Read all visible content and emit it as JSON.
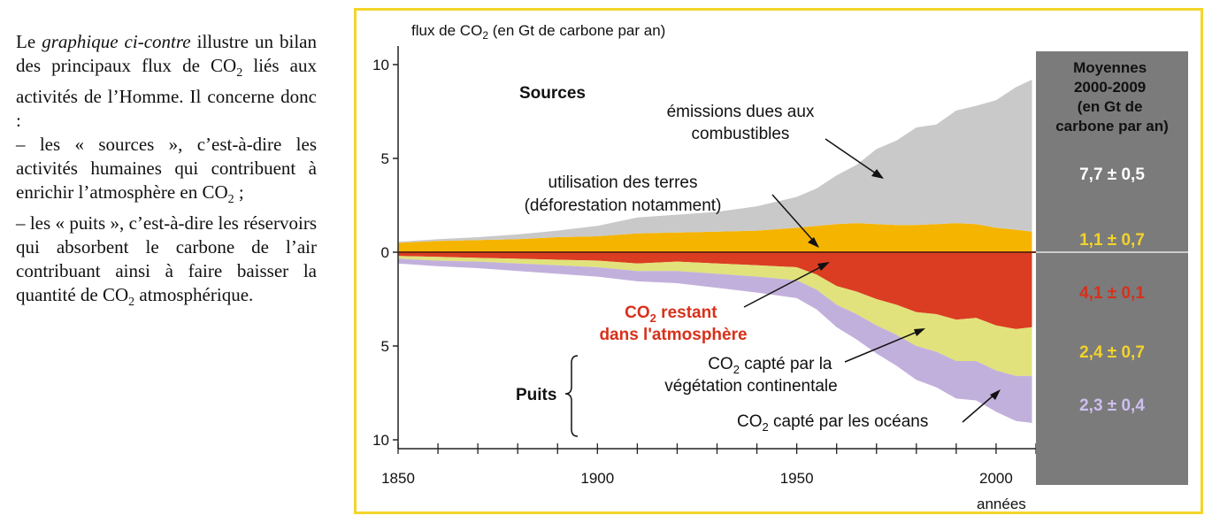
{
  "intro": {
    "p1_before": "Le ",
    "p1_italic": "graphique ci-contre",
    "p1_after": " illustre un bilan des principaux flux de CO",
    "p1_sub": "2",
    "p1_end": " liés aux activités de l’Homme. Il concerne donc :",
    "p2_start": "– les « sources », c’est-à-dire les activités humaines qui contribuent à enrichir l’atmosphère en CO",
    "p2_sub": "2",
    "p2_end": " ;",
    "p3_start": "– les « puits », c’est-à-dire les réservoirs qui absorbent le carbone de l’air contribuant ainsi à faire baisser la quantité de CO",
    "p3_sub": "2",
    "p3_end": " atmosphérique."
  },
  "colors": {
    "fossil": "#c9c9c9",
    "land_use": "#f5b400",
    "atmosphere": "#db3d22",
    "vegetation": "#e1e27b",
    "ocean": "#c2b0dc",
    "frame": "#f3d52a",
    "panel": "#7b7b7b",
    "label_red": "#d8301a",
    "label_yellow": "#f2d32a",
    "label_purple": "#cdbff0"
  },
  "chart_data": {
    "type": "area",
    "ylabel_pre": "flux de CO",
    "ylabel_sub": "2",
    "ylabel_post": " (en Gt de carbone par an)",
    "xlabel": "années",
    "xlim": [
      1850,
      2010
    ],
    "ylim_sources": [
      0,
      10
    ],
    "ylim_sinks": [
      0,
      10
    ],
    "x_ticks": [
      "1850",
      "1900",
      "1950",
      "2000"
    ],
    "y_ticks_sources": [
      "10",
      "5",
      "0"
    ],
    "y_ticks_sinks": [
      "5",
      "10"
    ],
    "x": [
      1850,
      1860,
      1870,
      1880,
      1890,
      1900,
      1910,
      1920,
      1930,
      1940,
      1950,
      1955,
      1960,
      1965,
      1970,
      1975,
      1980,
      1985,
      1990,
      1995,
      2000,
      2005,
      2009
    ],
    "sources": [
      {
        "key": "land_use",
        "values": [
          0.5,
          0.6,
          0.65,
          0.7,
          0.8,
          0.85,
          1.0,
          1.05,
          1.1,
          1.15,
          1.3,
          1.4,
          1.5,
          1.55,
          1.5,
          1.45,
          1.45,
          1.5,
          1.55,
          1.5,
          1.3,
          1.2,
          1.1
        ]
      },
      {
        "key": "fossil",
        "values": [
          0.05,
          0.1,
          0.15,
          0.25,
          0.35,
          0.55,
          0.85,
          0.95,
          1.05,
          1.3,
          1.65,
          2.0,
          2.6,
          3.1,
          4.0,
          4.5,
          5.2,
          5.3,
          6.0,
          6.3,
          6.8,
          7.6,
          8.1
        ]
      }
    ],
    "sinks": [
      {
        "key": "atmosphere",
        "values": [
          0.2,
          0.25,
          0.3,
          0.35,
          0.4,
          0.45,
          0.6,
          0.5,
          0.6,
          0.7,
          0.8,
          1.2,
          1.8,
          2.1,
          2.5,
          2.8,
          3.2,
          3.3,
          3.6,
          3.5,
          3.9,
          4.1,
          4.0
        ]
      },
      {
        "key": "vegetation",
        "values": [
          0.15,
          0.2,
          0.2,
          0.25,
          0.3,
          0.35,
          0.4,
          0.5,
          0.55,
          0.6,
          0.7,
          0.8,
          1.0,
          1.2,
          1.4,
          1.6,
          1.8,
          2.0,
          2.2,
          2.3,
          2.4,
          2.5,
          2.6
        ]
      },
      {
        "key": "ocean",
        "values": [
          0.25,
          0.3,
          0.35,
          0.4,
          0.45,
          0.5,
          0.55,
          0.65,
          0.75,
          0.85,
          0.95,
          1.05,
          1.2,
          1.35,
          1.5,
          1.65,
          1.8,
          1.9,
          2.0,
          2.1,
          2.2,
          2.4,
          2.5
        ]
      }
    ],
    "annotations": {
      "sources": "Sources",
      "puits": "Puits",
      "fossil": [
        "émissions dues aux",
        "combustibles"
      ],
      "land_use": [
        "utilisation des terres",
        "(déforestation notamment)"
      ],
      "atmosphere_1_pre": "CO",
      "atmosphere_1_sub": "2",
      "atmosphere_1_post": " restant",
      "atmosphere_2": "dans l'atmosphère",
      "vegetation_1_pre": "CO",
      "vegetation_1_sub": "2",
      "vegetation_1_post": " capté par la",
      "vegetation_2": "végétation continentale",
      "ocean_pre": "CO",
      "ocean_sub": "2",
      "ocean_post": " capté par les océans"
    },
    "averages": {
      "title": [
        "Moyennes",
        "2000-2009",
        "(en Gt de",
        "carbone par an)"
      ],
      "fossil": "7,7 ± 0,5",
      "land_use": "1,1 ± 0,7",
      "atmosphere": "4,1 ± 0,1",
      "vegetation": "2,4 ± 0,7",
      "ocean": "2,3 ± 0,4"
    }
  }
}
